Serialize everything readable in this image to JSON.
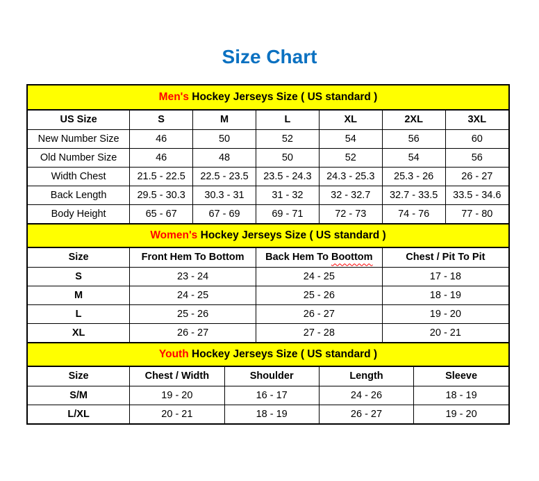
{
  "page": {
    "title": "Size Chart"
  },
  "colors": {
    "title_blue": "#0b71c1",
    "section_band_yellow": "#ffff00",
    "section_highlight_red": "#ff0000",
    "border_black": "#000000"
  },
  "tables": [
    {
      "id": "mens",
      "header_highlight": "Men's",
      "header_rest": " Hockey Jerseys Size ( US standard )",
      "columns": [
        "US Size",
        "S",
        "M",
        "L",
        "XL",
        "2XL",
        "3XL"
      ],
      "row_label_bold": false,
      "rows": [
        [
          "New Number Size",
          "46",
          "50",
          "52",
          "54",
          "56",
          "60"
        ],
        [
          "Old Number Size",
          "46",
          "48",
          "50",
          "52",
          "54",
          "56"
        ],
        [
          "Width Chest",
          "21.5 - 22.5",
          "22.5 - 23.5",
          "23.5 - 24.3",
          "24.3 - 25.3",
          "25.3 - 26",
          "26 - 27"
        ],
        [
          "Back Length",
          "29.5 - 30.3",
          "30.3 - 31",
          "31 - 32",
          "32 - 32.7",
          "32.7 - 33.5",
          "33.5 - 34.6"
        ],
        [
          "Body Height",
          "65 - 67",
          "67 - 69",
          "69 - 71",
          "72 - 73",
          "74 - 76",
          "77 - 80"
        ]
      ]
    },
    {
      "id": "womens",
      "header_highlight": "Women's",
      "header_rest": " Hockey Jerseys Size ( US standard )",
      "columns": [
        "Size",
        "Front Hem To Bottom",
        "Back Hem To Boottom",
        "Chest / Pit To Pit"
      ],
      "wavy": {
        "column": 2,
        "word": "Boottom"
      },
      "row_label_bold": true,
      "rows": [
        [
          "S",
          "23 - 24",
          "24 - 25",
          "17 - 18"
        ],
        [
          "M",
          "24 - 25",
          "25 - 26",
          "18 - 19"
        ],
        [
          "L",
          "25 - 26",
          "26 - 27",
          "19 - 20"
        ],
        [
          "XL",
          "26 - 27",
          "27 - 28",
          "20 - 21"
        ]
      ]
    },
    {
      "id": "youth",
      "header_highlight": "Youth",
      "header_rest": " Hockey Jerseys Size ( US standard )",
      "columns": [
        "Size",
        "Chest / Width",
        "Shoulder",
        "Length",
        "Sleeve"
      ],
      "row_label_bold": true,
      "rows": [
        [
          "S/M",
          "19 - 20",
          "16 - 17",
          "24 - 26",
          "18 - 19"
        ],
        [
          "L/XL",
          "20 - 21",
          "18 - 19",
          "26 - 27",
          "19 - 20"
        ]
      ]
    }
  ]
}
